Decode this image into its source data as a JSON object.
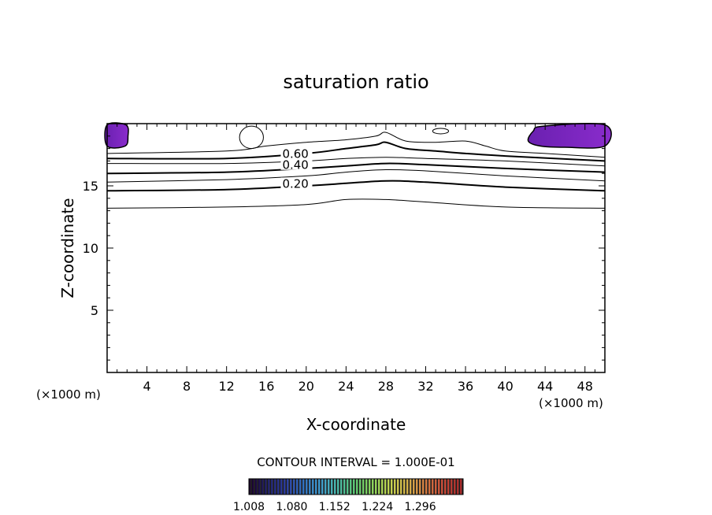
{
  "chart_data": {
    "type": "contour",
    "title": "saturation ratio",
    "xlabel": "X-coordinate",
    "ylabel": "Z-coordinate",
    "x_unit_left": "(×1000 m)",
    "x_unit_right": "(×1000 m)",
    "xlim": [
      0,
      50
    ],
    "ylim": [
      0,
      20
    ],
    "x_ticks": [
      4,
      8,
      12,
      16,
      20,
      24,
      28,
      32,
      36,
      40,
      44,
      48
    ],
    "y_ticks": [
      5,
      10,
      15
    ],
    "contour_interval_label": "CONTOUR INTERVAL = 1.000E-01",
    "contour_labels": [
      {
        "text": "0.60",
        "x": 17.6,
        "z": 17.5
      },
      {
        "text": "0.40",
        "x": 17.6,
        "z": 16.6
      },
      {
        "text": "0.20",
        "x": 17.6,
        "z": 15.1
      }
    ],
    "contours": [
      {
        "level": "0.1",
        "bold": false,
        "points": [
          [
            0,
            13.2
          ],
          [
            12,
            13.3
          ],
          [
            20,
            13.5
          ],
          [
            24,
            13.9
          ],
          [
            28,
            13.9
          ],
          [
            32,
            13.7
          ],
          [
            40,
            13.3
          ],
          [
            50,
            13.2
          ]
        ]
      },
      {
        "level": "0.2",
        "bold": true,
        "points": [
          [
            0,
            14.6
          ],
          [
            12,
            14.7
          ],
          [
            20,
            15.0
          ],
          [
            24,
            15.2
          ],
          [
            28,
            15.4
          ],
          [
            32,
            15.3
          ],
          [
            40,
            14.9
          ],
          [
            50,
            14.6
          ]
        ]
      },
      {
        "level": "0.3",
        "bold": false,
        "points": [
          [
            0,
            15.3
          ],
          [
            12,
            15.5
          ],
          [
            20,
            15.8
          ],
          [
            24,
            16.1
          ],
          [
            28,
            16.3
          ],
          [
            32,
            16.2
          ],
          [
            40,
            15.8
          ],
          [
            50,
            15.4
          ]
        ]
      },
      {
        "level": "0.4",
        "bold": true,
        "points": [
          [
            0,
            16.0
          ],
          [
            12,
            16.1
          ],
          [
            20,
            16.4
          ],
          [
            24,
            16.6
          ],
          [
            28,
            16.8
          ],
          [
            32,
            16.7
          ],
          [
            40,
            16.4
          ],
          [
            50,
            16.1
          ]
        ]
      },
      {
        "level": "0.5",
        "bold": false,
        "points": [
          [
            0,
            16.8
          ],
          [
            12,
            16.8
          ],
          [
            20,
            17.0
          ],
          [
            24,
            17.2
          ],
          [
            28,
            17.3
          ],
          [
            32,
            17.2
          ],
          [
            40,
            17.0
          ],
          [
            50,
            16.6
          ]
        ]
      },
      {
        "level": "0.6",
        "bold": true,
        "points": [
          [
            0,
            17.2
          ],
          [
            12,
            17.2
          ],
          [
            20,
            17.6
          ],
          [
            24,
            18.0
          ],
          [
            27,
            18.3
          ],
          [
            28,
            18.5
          ],
          [
            30,
            18.0
          ],
          [
            33,
            17.8
          ],
          [
            36,
            17.6
          ],
          [
            40,
            17.4
          ],
          [
            50,
            17.0
          ]
        ]
      },
      {
        "level": "0.7",
        "bold": false,
        "points": [
          [
            0,
            17.6
          ],
          [
            12,
            17.8
          ],
          [
            16,
            18.2
          ],
          [
            20,
            18.5
          ],
          [
            24,
            18.7
          ],
          [
            27,
            19.0
          ],
          [
            28,
            19.3
          ],
          [
            30,
            18.6
          ],
          [
            33,
            18.5
          ],
          [
            36,
            18.6
          ],
          [
            38,
            18.2
          ],
          [
            40,
            17.8
          ],
          [
            44,
            17.6
          ],
          [
            50,
            17.3
          ]
        ]
      }
    ],
    "shaded_regions": [
      {
        "name": "left-top",
        "points": [
          [
            0,
            18.2
          ],
          [
            1.8,
            18.2
          ],
          [
            2.1,
            19.0
          ],
          [
            1.9,
            19.9
          ],
          [
            0,
            19.9
          ]
        ]
      },
      {
        "name": "right-top",
        "points": [
          [
            42.3,
            18.6
          ],
          [
            42.8,
            19.4
          ],
          [
            43.8,
            19.8
          ],
          [
            50,
            19.9
          ],
          [
            50,
            18.2
          ],
          [
            46,
            18.1
          ],
          [
            43.5,
            18.2
          ]
        ]
      }
    ],
    "colorbar": {
      "min": 1.008,
      "max": 1.368,
      "tick_labels": [
        "1.008",
        "1.080",
        "1.152",
        "1.224",
        "1.296"
      ],
      "colors": [
        "#1a0028",
        "#20206a",
        "#2a3a9e",
        "#2f6fc0",
        "#3e9bd0",
        "#48b8a8",
        "#5cc870",
        "#8cd45a",
        "#c4d44e",
        "#d6b048",
        "#d47a40",
        "#c84a38",
        "#a82828"
      ]
    },
    "region_color": "#7a22b8"
  }
}
